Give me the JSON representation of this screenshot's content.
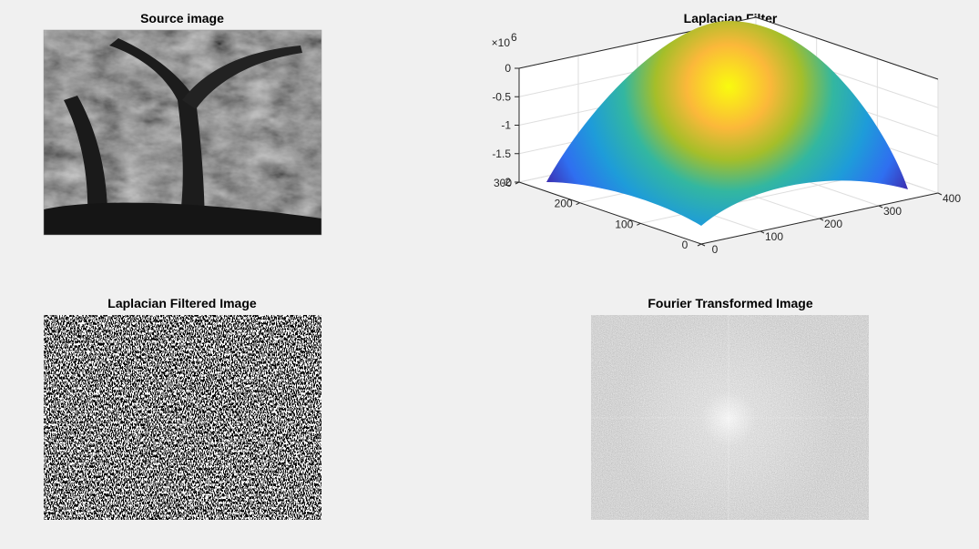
{
  "chart_data": [
    {
      "type": "image",
      "title": "Source image"
    },
    {
      "type": "surface",
      "title": "Laplacian Filter",
      "xlim": [
        0,
        400
      ],
      "ylim": [
        0,
        300
      ],
      "zlim": [
        -2,
        0
      ],
      "xticks": [
        0,
        100,
        200,
        300,
        400
      ],
      "yticks": [
        0,
        100,
        200,
        300
      ],
      "zticks": [
        -2,
        -1.5,
        -1,
        -0.5,
        0
      ],
      "z_multiplier": {
        "base": "×10",
        "exponent": "6"
      }
    },
    {
      "type": "image",
      "title": "Laplacian Filtered Image"
    },
    {
      "type": "image",
      "title": "Fourier Transformed Image"
    }
  ]
}
